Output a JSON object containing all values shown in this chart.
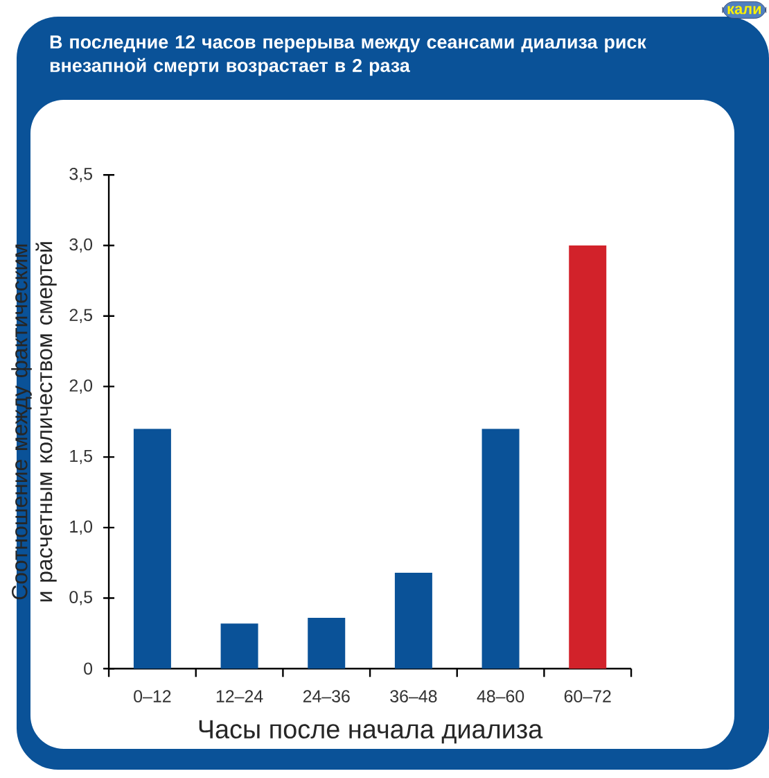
{
  "chart_data": {
    "type": "bar",
    "title": "В последние 12 часов перерыва между сеансами диализа риск внезапной смерти возрастает в 2 раза",
    "xlabel": "Часы после начала диализа",
    "ylabel": "Соотношение между фактическим и расчетным количеством смертей",
    "categories": [
      "0–12",
      "12–24",
      "24–36",
      "36–48",
      "48–60",
      "60–72"
    ],
    "values": [
      1.7,
      0.32,
      0.36,
      0.68,
      1.7,
      3.0
    ],
    "colors": [
      "#0a5298",
      "#0a5298",
      "#0a5298",
      "#0a5298",
      "#0a5298",
      "#d2222a"
    ],
    "ylim": [
      0,
      3.5
    ],
    "yticks": [
      {
        "value": 0,
        "label": "0"
      },
      {
        "value": 0.5,
        "label": "0,5"
      },
      {
        "value": 1,
        "label": "1,0"
      },
      {
        "value": 1.5,
        "label": "1,5"
      },
      {
        "value": 2,
        "label": "2,0"
      },
      {
        "value": 2.5,
        "label": "2,5"
      },
      {
        "value": 3,
        "label": "3,0"
      },
      {
        "value": 3.5,
        "label": "3,5"
      }
    ],
    "annotations": [
      "кали"
    ]
  }
}
